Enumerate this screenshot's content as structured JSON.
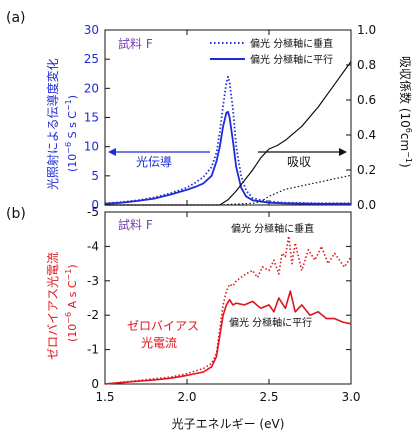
{
  "colors": {
    "blue": "#1f2bd6",
    "red": "#e0151c",
    "black": "#111111",
    "purple": "#7a3fb3"
  },
  "chart_data": [
    {
      "panel": "(a)",
      "type": "line",
      "sample_label": "試料 F",
      "ylabel_left_line1": "光照射による伝導度変化",
      "ylabel_left_line2": "(10",
      "ylabel_left_exp": "−6",
      "ylabel_left_unit": " S s C",
      "ylabel_left_unit_exp": "−1",
      "ylabel_left_close": ")",
      "ylabel_right_main": "吸収係数 (10",
      "ylabel_right_exp1": "6",
      "ylabel_right_mid": "cm",
      "ylabel_right_exp2": "−1",
      "ylabel_right_close": ")",
      "xlim": [
        1.5,
        3.0
      ],
      "ylim_left": [
        0,
        30
      ],
      "ylim_right": [
        0,
        1.0
      ],
      "yticks_left": [
        "0",
        "5",
        "10",
        "15",
        "20",
        "25",
        "30"
      ],
      "yticks_right": [
        "0.0",
        "0.2",
        "0.4",
        "0.6",
        "0.8",
        "1.0"
      ],
      "legend": [
        {
          "label": "偏光 分極軸に垂直",
          "style": "dotted"
        },
        {
          "label": "偏光 分極軸に平行",
          "style": "solid"
        }
      ],
      "annotations": {
        "photoconductivity": "光伝導",
        "absorption": "吸収"
      },
      "series": [
        {
          "name": "偏光 分極軸に垂直",
          "axis": "left",
          "style": "dotted",
          "color": "#1f2bd6",
          "x": [
            1.5,
            1.6,
            1.7,
            1.8,
            1.9,
            2.0,
            2.05,
            2.1,
            2.15,
            2.18,
            2.2,
            2.22,
            2.24,
            2.25,
            2.26,
            2.28,
            2.3,
            2.33,
            2.36,
            2.4,
            2.45,
            2.5,
            2.6,
            2.8,
            3.0
          ],
          "y": [
            0.3,
            0.5,
            0.8,
            1.3,
            2.0,
            3.0,
            3.8,
            4.8,
            6.5,
            9.0,
            12.5,
            17.0,
            21.0,
            22.0,
            21.0,
            16.5,
            10.0,
            5.0,
            2.5,
            1.2,
            0.8,
            0.6,
            0.4,
            0.3,
            0.3
          ]
        },
        {
          "name": "偏光 分極軸に平行",
          "axis": "left",
          "style": "solid",
          "color": "#1f2bd6",
          "x": [
            1.5,
            1.6,
            1.7,
            1.8,
            1.9,
            2.0,
            2.05,
            2.1,
            2.15,
            2.18,
            2.2,
            2.22,
            2.24,
            2.25,
            2.26,
            2.28,
            2.3,
            2.33,
            2.36,
            2.4,
            2.5,
            2.6,
            2.8,
            3.0
          ],
          "y": [
            0.2,
            0.4,
            0.7,
            1.1,
            1.8,
            2.6,
            3.1,
            3.7,
            5.0,
            7.5,
            10.0,
            13.5,
            15.8,
            16.0,
            15.0,
            11.0,
            6.5,
            3.0,
            1.5,
            0.8,
            0.4,
            0.3,
            0.2,
            0.2
          ]
        },
        {
          "name": "偏光 分極軸に垂直",
          "axis": "right",
          "style": "dotted",
          "color": "#111111",
          "x": [
            1.5,
            2.2,
            2.3,
            2.4,
            2.45,
            2.5,
            2.55,
            2.6,
            2.7,
            2.8,
            2.9,
            3.0
          ],
          "y": [
            0.0,
            0.0,
            0.005,
            0.01,
            0.02,
            0.05,
            0.07,
            0.09,
            0.11,
            0.13,
            0.15,
            0.17
          ]
        },
        {
          "name": "偏光 分極軸に平行",
          "axis": "right",
          "style": "solid",
          "color": "#111111",
          "x": [
            1.5,
            2.2,
            2.25,
            2.3,
            2.35,
            2.4,
            2.45,
            2.5,
            2.55,
            2.6,
            2.7,
            2.8,
            2.9,
            3.0
          ],
          "y": [
            0.0,
            0.0,
            0.03,
            0.08,
            0.14,
            0.2,
            0.27,
            0.32,
            0.34,
            0.37,
            0.45,
            0.56,
            0.69,
            0.82
          ]
        }
      ]
    },
    {
      "panel": "(b)",
      "type": "line",
      "sample_label": "試料 F",
      "ylabel_line1": "ゼロバイアス光電流",
      "ylabel_line2": "(10",
      "ylabel_exp": "−6",
      "ylabel_unit": " A s C",
      "ylabel_unit_exp": "−1",
      "ylabel_close": ")",
      "xlabel": "光子エネルギー (eV)",
      "xticks": [
        "1.5",
        "2.0",
        "2.5",
        "3.0"
      ],
      "xlim": [
        1.5,
        3.0
      ],
      "ylim": [
        0,
        -5
      ],
      "yticks": [
        "0",
        "-1",
        "-2",
        "-3",
        "-4",
        "-5"
      ],
      "annotations": {
        "perpendicular": "偏光 分極軸に垂直",
        "parallel": "偏光 分極軸に平行",
        "zero_bias_line1": "ゼロバイアス",
        "zero_bias_line2": "光電流"
      },
      "series": [
        {
          "name": "偏光 分極軸に垂直",
          "style": "dotted",
          "color": "#e0151c",
          "x": [
            1.5,
            1.6,
            1.7,
            1.8,
            1.9,
            2.0,
            2.1,
            2.15,
            2.18,
            2.2,
            2.22,
            2.24,
            2.26,
            2.28,
            2.3,
            2.33,
            2.36,
            2.4,
            2.43,
            2.46,
            2.5,
            2.53,
            2.56,
            2.58,
            2.6,
            2.62,
            2.64,
            2.66,
            2.7,
            2.74,
            2.78,
            2.82,
            2.86,
            2.9,
            2.93,
            2.96,
            3.0
          ],
          "y": [
            0,
            -0.05,
            -0.1,
            -0.15,
            -0.2,
            -0.3,
            -0.45,
            -0.6,
            -0.9,
            -1.6,
            -2.3,
            -2.7,
            -2.9,
            -2.85,
            -3.0,
            -3.1,
            -3.2,
            -3.3,
            -3.1,
            -3.4,
            -3.3,
            -3.6,
            -3.2,
            -3.8,
            -3.7,
            -4.3,
            -3.5,
            -4.1,
            -3.3,
            -3.9,
            -3.6,
            -4.0,
            -3.5,
            -3.8,
            -3.6,
            -3.4,
            -3.7
          ]
        },
        {
          "name": "偏光 分極軸に平行",
          "style": "solid",
          "color": "#e0151c",
          "x": [
            1.5,
            1.6,
            1.7,
            1.8,
            1.9,
            2.0,
            2.1,
            2.15,
            2.18,
            2.2,
            2.22,
            2.24,
            2.26,
            2.28,
            2.3,
            2.35,
            2.4,
            2.45,
            2.5,
            2.53,
            2.56,
            2.6,
            2.63,
            2.66,
            2.7,
            2.75,
            2.8,
            2.85,
            2.9,
            2.95,
            3.0
          ],
          "y": [
            0,
            -0.04,
            -0.08,
            -0.12,
            -0.17,
            -0.25,
            -0.35,
            -0.5,
            -0.8,
            -1.4,
            -2.0,
            -2.3,
            -2.45,
            -2.3,
            -2.35,
            -2.3,
            -2.4,
            -2.2,
            -2.3,
            -2.1,
            -2.5,
            -2.2,
            -2.7,
            -2.1,
            -2.3,
            -2.0,
            -2.1,
            -1.9,
            -1.9,
            -1.8,
            -1.75
          ]
        }
      ]
    }
  ]
}
